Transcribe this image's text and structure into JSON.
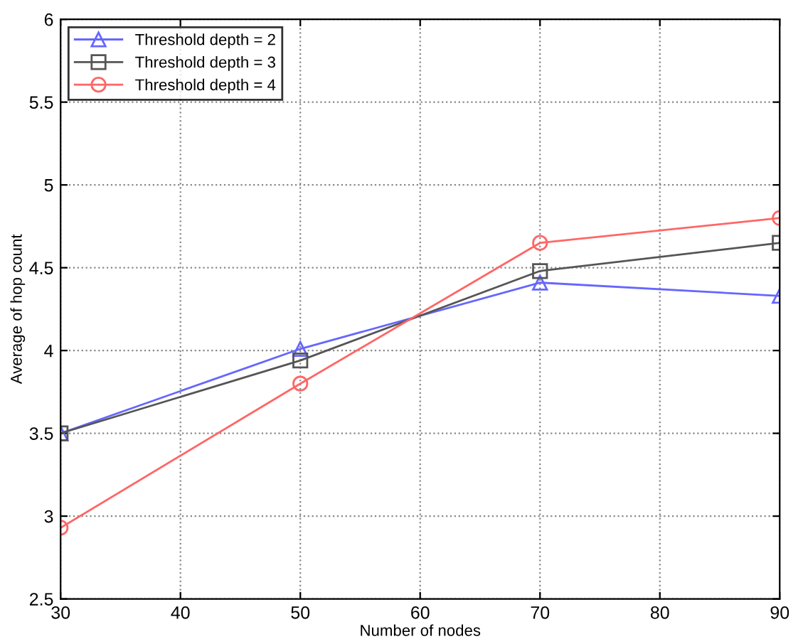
{
  "chart_data": {
    "type": "line",
    "xlabel": "Number of nodes",
    "ylabel": "Average of hop count",
    "x": [
      30,
      50,
      70,
      90
    ],
    "series": [
      {
        "name": "Threshold depth = 2",
        "color": "#6666ff",
        "marker": "triangle",
        "values": [
          3.5,
          4.01,
          4.41,
          4.33
        ]
      },
      {
        "name": "Threshold depth = 3",
        "color": "#555555",
        "marker": "square",
        "values": [
          3.5,
          3.94,
          4.48,
          4.65
        ]
      },
      {
        "name": "Threshold depth = 4",
        "color": "#ff6666",
        "marker": "circle",
        "values": [
          2.93,
          3.8,
          4.65,
          4.8
        ]
      }
    ],
    "xlim": [
      30,
      90
    ],
    "xticks": [
      30,
      40,
      50,
      60,
      70,
      80,
      90
    ],
    "ylim": [
      2.5,
      6
    ],
    "yticks": [
      2.5,
      3,
      3.5,
      4,
      4.5,
      5,
      5.5,
      6
    ],
    "grid": true,
    "legend": "top left",
    "line_style": "solid"
  }
}
